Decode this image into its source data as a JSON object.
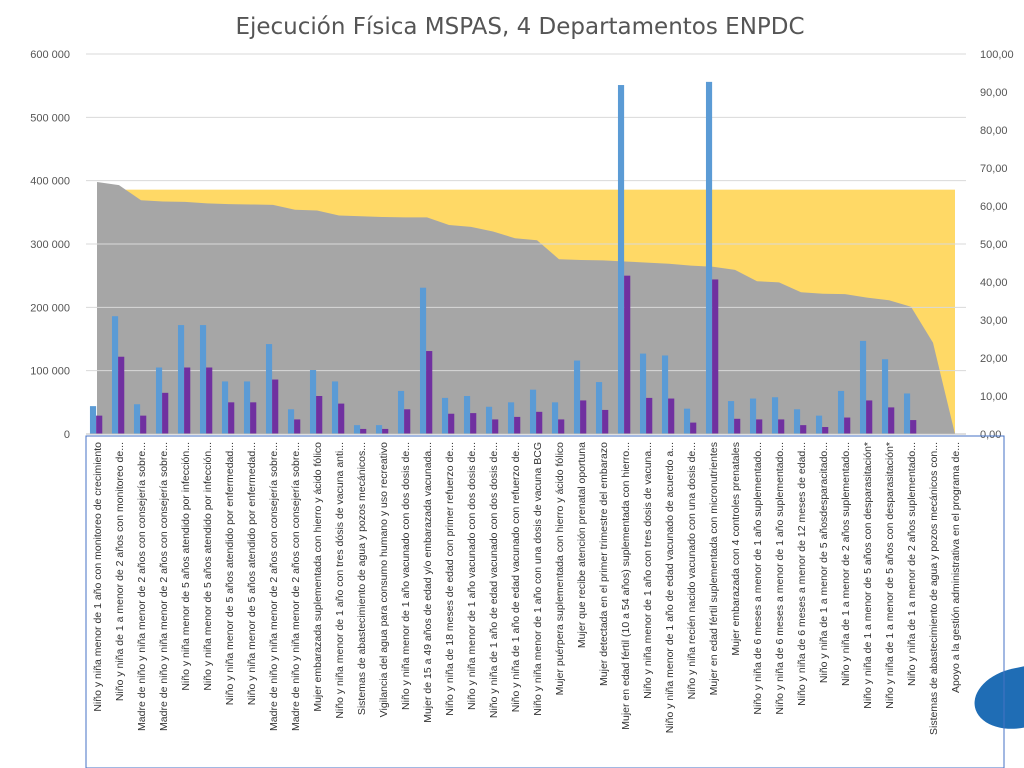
{
  "chart_data": {
    "type": "bar",
    "title": "Ejecución Física MSPAS, 4 Departamentos ENPDC",
    "y_left": {
      "ylim": [
        0,
        600000
      ],
      "ticks": [
        "0",
        "100 000",
        "200 000",
        "300 000",
        "400 000",
        "500 000",
        "600 000"
      ]
    },
    "y_right": {
      "ylim": [
        0,
        100
      ],
      "ticks": [
        "0,00",
        "10,00",
        "20,00",
        "30,00",
        "40,00",
        "50,00",
        "60,00",
        "70,00",
        "80,00",
        "90,00",
        "100,00"
      ]
    },
    "categories": [
      "Niño y niña menor de 1 año con monitoreo de crecimiento",
      "Niño y niña de 1 a menor de 2 años con monitoreo de...",
      "Madre de niño y niña menor de 2 años con consejería sobre...",
      "Madre de niño y niña menor de 2 años con  consejería sobre...",
      "Niño y niña menor de 5 años atendido por infección...",
      "Niño y niña menor de 5 años atendido por infección...",
      "Niño y niña menor de 5 años atendido por enfermedad...",
      "Niño y niña menor de 5 años atendido por enfermedad...",
      "Madre de niño y niña menor de 2 años con  consejería sobre...",
      "Madre de niño y niña menor de 2 años con consejería sobre...",
      "Mujer embarazada suplementada con hierro y ácido fólico",
      "Niño y niña menor de 1 año con tres dósis de vacuna anti...",
      "Sistemas de abastecimiento de agua y pozos mecánicos...",
      "Vigilancia del agua para consumo humano y uso recreativo",
      "Niño y niña menor de 1 año vacunado con dos dosis de...",
      "Mujer de 15 a 49 años de edad y/o embarazada vacunada...",
      "Niño y niña de 18 meses de edad con primer refuerzo de...",
      "Niño y niña menor de 1 año vacunado con dos dosis de...",
      "Niño y niña de 1 año de edad vacunado con dos dosis de...",
      "Niño y niña de 1 año de edad vacunado con  refuerzo de...",
      "Niño y niña menor de 1 año con una dosis de vacuna BCG",
      "Mujer puérpera suplementada con hierro y ácido fólico",
      "Mujer que recibe atención prenatal oportuna",
      "Mujer detectada en el primer trimestre del embarazo",
      "Mujer en edad fértil (10 a 54 años) suplementada con hierro...",
      "Niño y niña menor de 1 año con tres dosis de vacuna...",
      "Niño y niña menor de 1 año de edad vacunado de acuerdo a...",
      "Niño y niña recién nacido vacunado con una dosis de...",
      "Mujer en edad fértil suplementada con micronutrientes",
      "Mujer embarazada con 4 controles prenatales",
      "Niño y niña de 6 meses a menor de 1 año suplementado...",
      "Niño y niña de 6  meses a menor de 1 año suplementado...",
      "Niño y niña de 6 meses a menor de 12 meses de edad...",
      "Niño y niña de 1 a menor de 5 añosdesparacitado...",
      "Niño y niña de  1 a menor de 2 años suplementado...",
      "Niño y niña de 1 a menor de 5 años con desparasitación*",
      "Niño y niña de 1 a menor de 5 años con desparasitación*",
      "Niño y niña de 1 a menor de 2 años suplementado...",
      "Sistemas de abastecimiento de agua y pozos mecánicos con...",
      "Apoyo a la gestión administrativa en el programa de..."
    ],
    "series": [
      {
        "axis": "left",
        "color": "#5b9bd5",
        "values": [
          44000,
          186000,
          47000,
          105000,
          172000,
          172000,
          83000,
          83000,
          142000,
          39000,
          101000,
          83000,
          14000,
          14000,
          68000,
          231000,
          57000,
          60000,
          43000,
          50000,
          70000,
          50000,
          116000,
          82000,
          551000,
          127000,
          124000,
          40000,
          556000,
          52000,
          56000,
          58000,
          39000,
          29000,
          68000,
          147000,
          118000,
          64000,
          0,
          0
        ]
      },
      {
        "axis": "left",
        "color": "#7030a0",
        "values": [
          29000,
          122000,
          29000,
          65000,
          105000,
          105000,
          50000,
          50000,
          86000,
          23000,
          60000,
          48000,
          8000,
          8000,
          39000,
          131000,
          32000,
          33000,
          23000,
          27000,
          35000,
          23000,
          53000,
          38000,
          250000,
          57000,
          56000,
          18000,
          244000,
          24000,
          23000,
          23000,
          14000,
          11000,
          26000,
          53000,
          42000,
          22000,
          0,
          0
        ]
      },
      {
        "axis": "right",
        "type": "area",
        "color": "#a6a6a6",
        "values": [
          66.3,
          65.5,
          61.5,
          61.2,
          61.1,
          60.7,
          60.5,
          60.4,
          60.3,
          59.0,
          58.8,
          57.5,
          57.3,
          57.1,
          57.0,
          57.0,
          55.0,
          54.5,
          53.3,
          51.5,
          51.0,
          46.0,
          45.8,
          45.7,
          45.4,
          45.1,
          44.8,
          44.3,
          44.0,
          43.2,
          40.2,
          39.9,
          37.3,
          36.9,
          36.8,
          35.9,
          35.2,
          33.5,
          24.0,
          0
        ]
      },
      {
        "axis": "right",
        "type": "band",
        "color": "#ffd966",
        "value": 64.3
      }
    ]
  }
}
